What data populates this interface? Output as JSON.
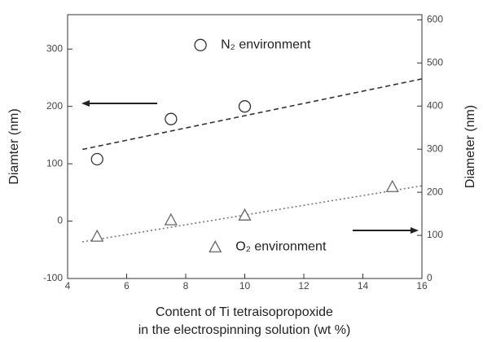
{
  "chart_data": {
    "type": "scatter",
    "xlabel": [
      "Content of Ti tetraisopropoxide",
      "in the electrospinning solution (wt %)"
    ],
    "ylabel": "Diamter (nm)",
    "y2label": "Diameter (nm)",
    "xlim": [
      4,
      16
    ],
    "xticks": [
      4,
      6,
      8,
      10,
      12,
      14,
      16
    ],
    "ylim": [
      -100,
      360
    ],
    "yticks": [
      -100,
      0,
      100,
      200,
      300
    ],
    "y2lim": [
      0,
      612
    ],
    "y2ticks": [
      0,
      100,
      200,
      300,
      400,
      500,
      600
    ],
    "series": [
      {
        "name": "N₂ environment",
        "marker": "circle",
        "color": "#333",
        "axis": "y",
        "x": [
          5,
          7.5,
          10
        ],
        "values": [
          108,
          178,
          200
        ]
      },
      {
        "name": "O₂ environment",
        "marker": "triangle",
        "color": "#666",
        "axis": "y2",
        "x": [
          5,
          7.5,
          10,
          15
        ],
        "values": [
          98,
          136,
          147,
          213
        ]
      }
    ],
    "trend_lines": [
      {
        "axis": "y",
        "style": "dashed",
        "color": "#333",
        "x": [
          4.5,
          16
        ],
        "values": [
          125,
          248
        ]
      },
      {
        "axis": "y2",
        "style": "dotted",
        "color": "#777",
        "x": [
          4.5,
          16
        ],
        "values": [
          85,
          215
        ]
      }
    ],
    "legend_positions": [
      {
        "x": 8.5,
        "y": 307
      },
      {
        "x": 9,
        "y": -45
      }
    ]
  }
}
